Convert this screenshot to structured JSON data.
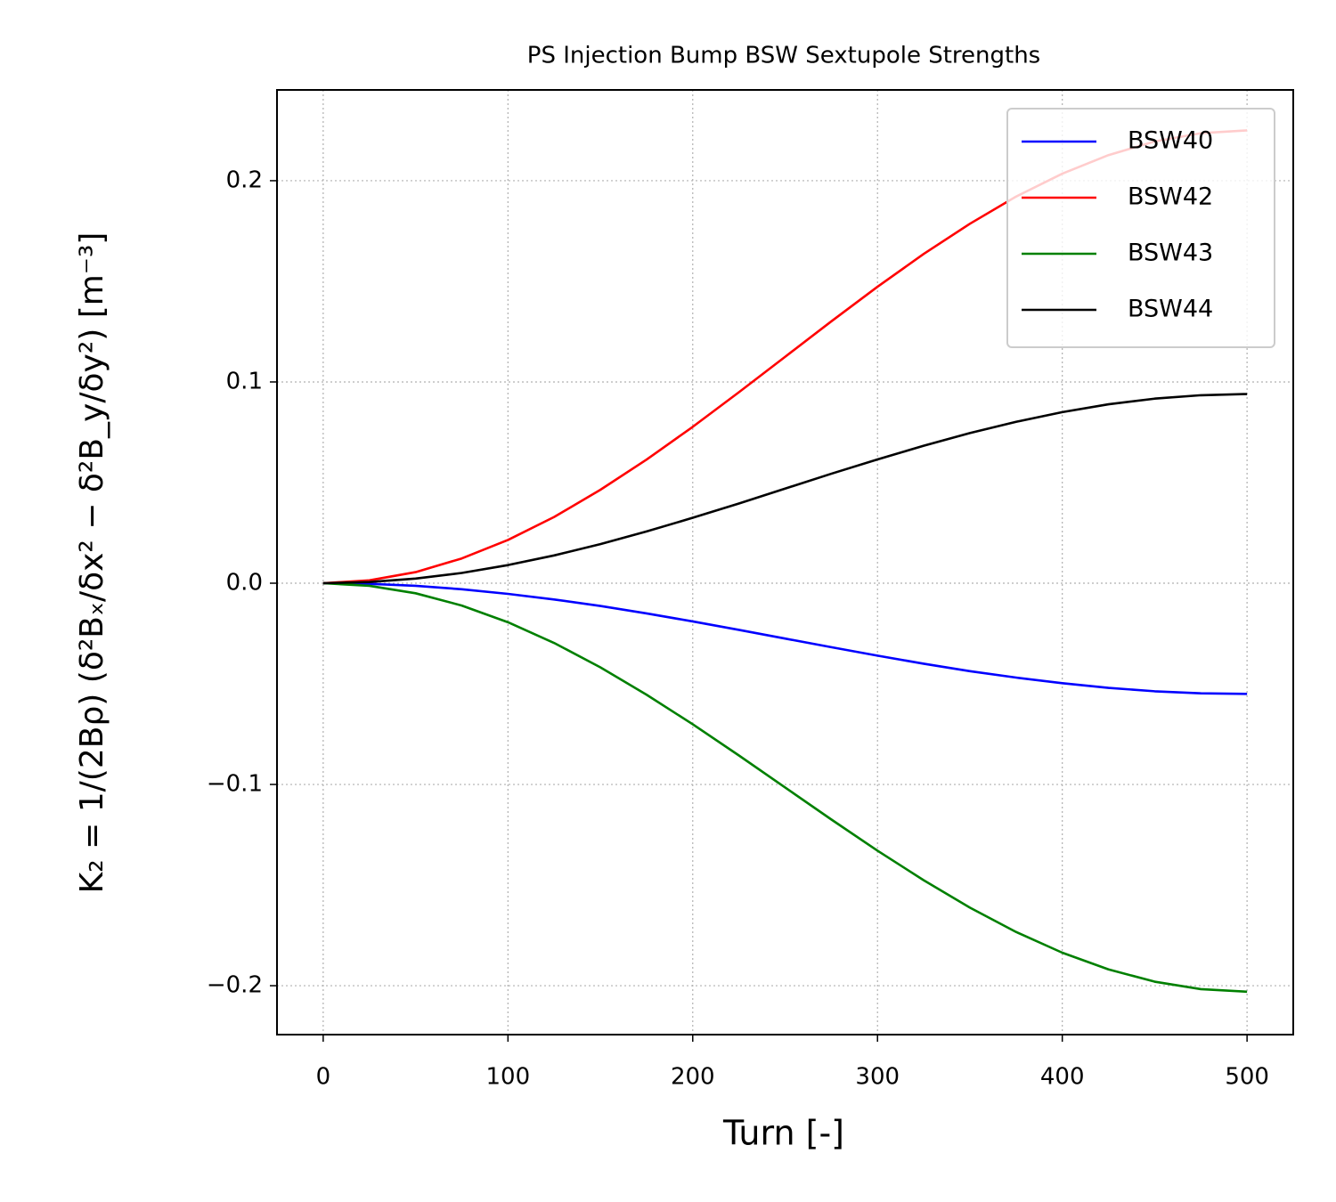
{
  "chart_data": {
    "type": "line",
    "title": "PS Injection Bump BSW Sextupole Strengths",
    "xlabel": "Turn [-]",
    "ylabel": "K₂ = 1/(2Bρ) (δ²Bₓ/δx² − δ²B_y/δy²) [m⁻³]",
    "x": [
      0,
      25,
      50,
      75,
      100,
      125,
      150,
      175,
      200,
      225,
      250,
      275,
      300,
      325,
      350,
      375,
      400,
      425,
      450,
      475,
      500
    ],
    "series": [
      {
        "name": "BSW40",
        "color": "#0000ff",
        "values": [
          0,
          -0.0003,
          -0.0013,
          -0.003,
          -0.0053,
          -0.0081,
          -0.0113,
          -0.015,
          -0.019,
          -0.0232,
          -0.0275,
          -0.0318,
          -0.036,
          -0.04,
          -0.0437,
          -0.0469,
          -0.0497,
          -0.052,
          -0.0537,
          -0.0547,
          -0.055
        ]
      },
      {
        "name": "BSW42",
        "color": "#ff0000",
        "values": [
          0,
          0.0014,
          0.0055,
          0.0123,
          0.0215,
          0.0329,
          0.0464,
          0.0614,
          0.0777,
          0.0949,
          0.1125,
          0.1301,
          0.1473,
          0.1636,
          0.1786,
          0.1921,
          0.2035,
          0.2127,
          0.2195,
          0.2236,
          0.225
        ]
      },
      {
        "name": "BSW43",
        "color": "#008000",
        "values": [
          0,
          -0.0013,
          -0.005,
          -0.0111,
          -0.0194,
          -0.0297,
          -0.0418,
          -0.0554,
          -0.0701,
          -0.0856,
          -0.1015,
          -0.1174,
          -0.1329,
          -0.1476,
          -0.1612,
          -0.1733,
          -0.1836,
          -0.1919,
          -0.198,
          -0.2017,
          -0.203
        ]
      },
      {
        "name": "BSW44",
        "color": "#000000",
        "values": [
          0,
          0.0006,
          0.0023,
          0.0051,
          0.009,
          0.0138,
          0.0194,
          0.0257,
          0.0325,
          0.0396,
          0.047,
          0.0544,
          0.0615,
          0.0683,
          0.0746,
          0.0802,
          0.085,
          0.0889,
          0.0917,
          0.0934,
          0.094
        ]
      }
    ],
    "xlim": [
      -25,
      525
    ],
    "ylim": [
      -0.2243,
      0.2451
    ],
    "xticks": [
      0,
      100,
      200,
      300,
      400,
      500
    ],
    "yticks": [
      {
        "value": -0.2,
        "label": "−0.2"
      },
      {
        "value": -0.1,
        "label": "−0.1"
      },
      {
        "value": 0,
        "label": "0.0"
      },
      0.1,
      0.2
    ],
    "grid": true,
    "legend": "upper right"
  }
}
